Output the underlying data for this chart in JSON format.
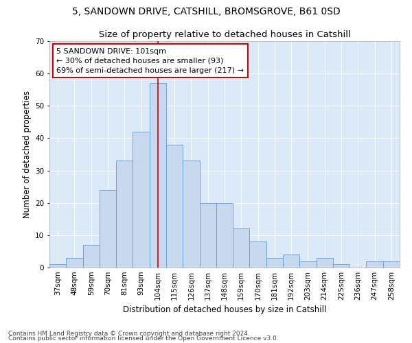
{
  "title_line1": "5, SANDOWN DRIVE, CATSHILL, BROMSGROVE, B61 0SD",
  "title_line2": "Size of property relative to detached houses in Catshill",
  "xlabel": "Distribution of detached houses by size in Catshill",
  "ylabel": "Number of detached properties",
  "categories": [
    "37sqm",
    "48sqm",
    "59sqm",
    "70sqm",
    "81sqm",
    "93sqm",
    "104sqm",
    "115sqm",
    "126sqm",
    "137sqm",
    "148sqm",
    "159sqm",
    "170sqm",
    "181sqm",
    "192sqm",
    "203sqm",
    "214sqm",
    "225sqm",
    "236sqm",
    "247sqm",
    "258sqm"
  ],
  "values": [
    1,
    3,
    7,
    24,
    33,
    42,
    57,
    38,
    33,
    20,
    20,
    12,
    8,
    3,
    4,
    2,
    3,
    1,
    0,
    2,
    2
  ],
  "bar_color": "#c8d9ef",
  "bar_edge_color": "#5b9bd5",
  "vline_color": "#cc0000",
  "annotation_text": "5 SANDOWN DRIVE: 101sqm\n← 30% of detached houses are smaller (93)\n69% of semi-detached houses are larger (217) →",
  "annotation_box_color": "#ffffff",
  "annotation_box_edge_color": "#cc0000",
  "ylim": [
    0,
    70
  ],
  "yticks": [
    0,
    10,
    20,
    30,
    40,
    50,
    60,
    70
  ],
  "footnote1": "Contains HM Land Registry data © Crown copyright and database right 2024.",
  "footnote2": "Contains public sector information licensed under the Open Government Licence v3.0.",
  "bg_color": "#dce9f8",
  "fig_bg_color": "#ffffff",
  "title_fontsize": 10,
  "subtitle_fontsize": 9.5,
  "axis_label_fontsize": 8.5,
  "tick_fontsize": 7.5,
  "annotation_fontsize": 8,
  "footnote_fontsize": 6.5
}
